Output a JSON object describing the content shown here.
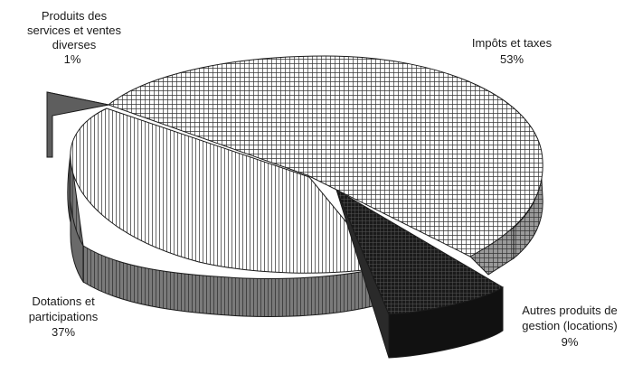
{
  "chart_data": {
    "type": "pie",
    "style": "3d-exploded",
    "title": "",
    "slices": [
      {
        "label_lines": [
          "Impôts et taxes"
        ],
        "percent_label": "53%",
        "value": 53,
        "fill": "cross-hatch-light"
      },
      {
        "label_lines": [
          "Autres produits de",
          "gestion (locations)"
        ],
        "percent_label": "9%",
        "value": 9,
        "fill": "black-grid"
      },
      {
        "label_lines": [
          "Dotations et",
          "participations"
        ],
        "percent_label": "37%",
        "value": 37,
        "fill": "vertical-lines"
      },
      {
        "label_lines": [
          "Produits des",
          "services et ventes",
          "diverses"
        ],
        "percent_label": "1%",
        "value": 1,
        "fill": "dark-gray"
      }
    ],
    "legend": "none",
    "colors": {
      "outline": "#1a1a1a",
      "side_shade": "#6b6b6b",
      "dark": "#111111"
    }
  }
}
